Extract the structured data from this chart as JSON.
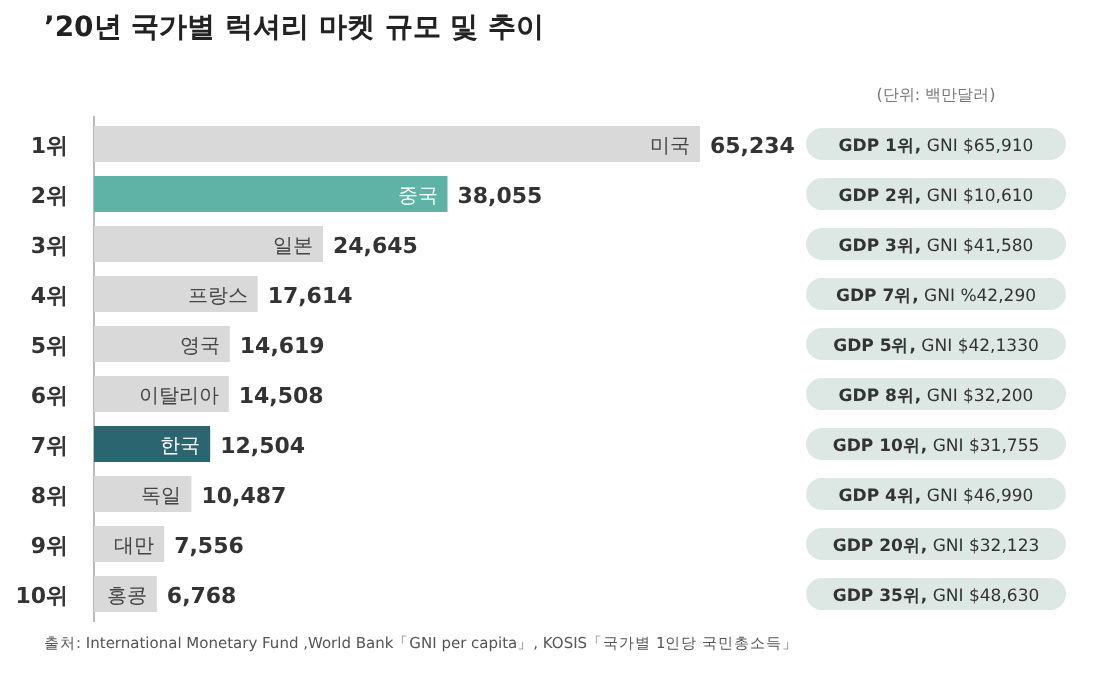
{
  "chart_data": {
    "type": "bar",
    "orientation": "horizontal",
    "title": "’20년 국가별 럭셔리 마켓 규모 및 추이",
    "subtitle": "(단위: 백만달러)",
    "categories": [
      "1위",
      "2위",
      "3위",
      "4위",
      "5위",
      "6위",
      "7위",
      "8위",
      "9위",
      "10위"
    ],
    "values": [
      65234,
      38055,
      24645,
      17614,
      14619,
      14508,
      12504,
      10487,
      7556,
      6768
    ],
    "colors": [
      "#d9d9d9",
      "#5fb3a6",
      "#d9d9d9",
      "#d9d9d9",
      "#d9d9d9",
      "#d9d9d9",
      "#2b6670",
      "#d9d9d9",
      "#d9d9d9",
      "#d9d9d9"
    ],
    "value_labels": [
      "65,234",
      "38,055",
      "24,645",
      "17,614",
      "14,619",
      "14,508",
      "12,504",
      "10,487",
      "7,556",
      "6,768"
    ],
    "annotations": [
      {
        "text": "미국",
        "y": "1위"
      },
      {
        "text": "중국",
        "y": "2위"
      },
      {
        "text": "일본",
        "y": "3위"
      },
      {
        "text": "프랑스",
        "y": "4위"
      },
      {
        "text": "영국",
        "y": "5위"
      },
      {
        "text": "이탈리아",
        "y": "6위"
      },
      {
        "text": "한국",
        "y": "7위"
      },
      {
        "text": "독일",
        "y": "8위"
      },
      {
        "text": "대만",
        "y": "9위"
      },
      {
        "text": "홍콩",
        "y": "10위"
      },
      "GDP 1위, GNI $65,910",
      "GDP 2위, GNI $10,610",
      "GDP 3위, GNI $41,580",
      "GDP 7위, GNI %42,290",
      "GDP 5위, GNI $42,1330",
      "GDP 8위, GNI $32,200",
      "GDP 10위, GNI $31,755",
      "GDP 4위, GNI $46,990",
      "GDP 20위, GNI $32,123",
      "GDP 35위, GNI $48,630",
      "출처: International Monetary Fund ,World Bank「GNI per capita」, KOSIS「국가별 1인당 국민총소득」"
    ]
  }
}
